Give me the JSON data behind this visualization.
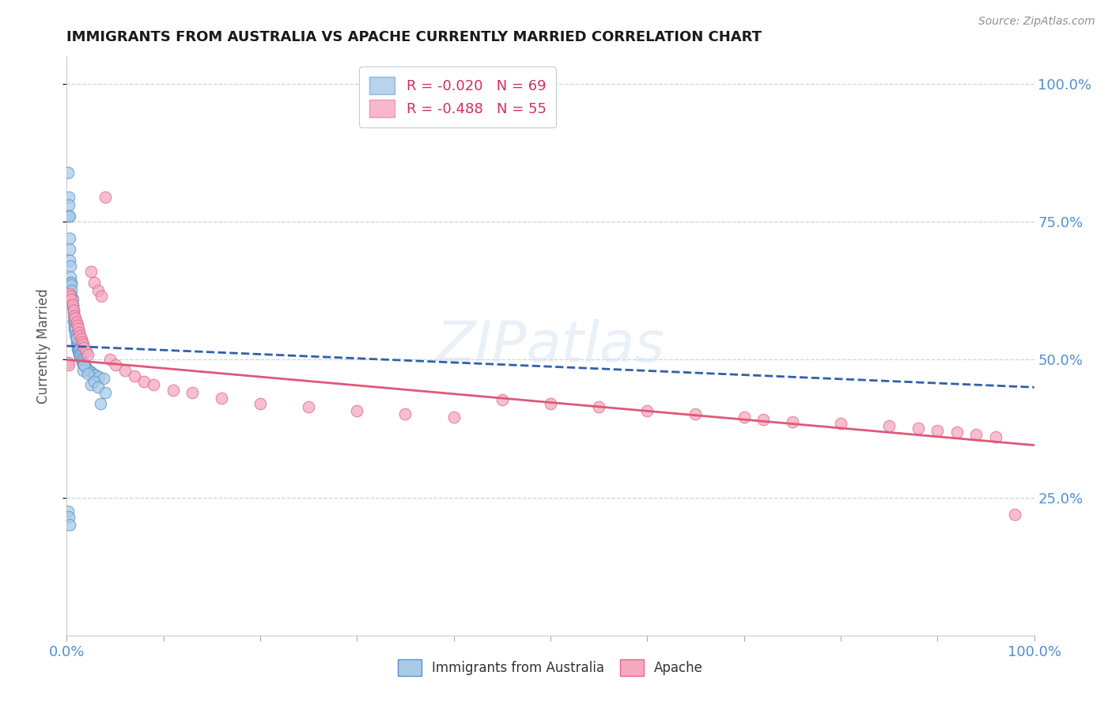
{
  "title": "IMMIGRANTS FROM AUSTRALIA VS APACHE CURRENTLY MARRIED CORRELATION CHART",
  "source": "Source: ZipAtlas.com",
  "ylabel": "Currently Married",
  "series1_label": "Immigrants from Australia",
  "series2_label": "Apache",
  "series1_color": "#a8cce8",
  "series2_color": "#f5a8c0",
  "series1_edge": "#6090c8",
  "series2_edge": "#e06888",
  "trend1_color": "#3060a8",
  "trend2_color": "#e05878",
  "axis_label_color": "#5090d0",
  "title_color": "#1a1a1a",
  "grid_color": "#c8d4e8",
  "background_color": "#ffffff",
  "legend_label_color": "#d03060",
  "legend_box_color1": "#b8d4ec",
  "legend_box_color2": "#f8b8cc",
  "legend_text1": "R = -0.020   N = 69",
  "legend_text2": "R = -0.488   N = 55",
  "trend1_intercept": 0.525,
  "trend1_slope": -0.075,
  "trend2_intercept": 0.5,
  "trend2_slope": -0.155,
  "xlim": [
    0.0,
    1.0
  ],
  "ylim": [
    0.0,
    1.05
  ],
  "figsize": [
    14.06,
    8.92
  ],
  "dpi": 100,
  "series1_x": [
    0.001,
    0.001,
    0.002,
    0.002,
    0.002,
    0.003,
    0.003,
    0.003,
    0.003,
    0.004,
    0.004,
    0.004,
    0.005,
    0.005,
    0.005,
    0.005,
    0.006,
    0.006,
    0.006,
    0.007,
    0.007,
    0.007,
    0.007,
    0.008,
    0.008,
    0.008,
    0.008,
    0.009,
    0.009,
    0.01,
    0.01,
    0.01,
    0.01,
    0.011,
    0.011,
    0.011,
    0.012,
    0.012,
    0.013,
    0.013,
    0.014,
    0.014,
    0.015,
    0.015,
    0.016,
    0.016,
    0.017,
    0.018,
    0.019,
    0.02,
    0.022,
    0.024,
    0.026,
    0.028,
    0.03,
    0.033,
    0.038,
    0.001,
    0.002,
    0.003,
    0.01,
    0.017,
    0.025,
    0.035,
    0.018,
    0.022,
    0.028,
    0.032,
    0.04
  ],
  "series1_y": [
    0.84,
    0.76,
    0.795,
    0.78,
    0.76,
    0.76,
    0.72,
    0.7,
    0.68,
    0.67,
    0.65,
    0.64,
    0.64,
    0.635,
    0.625,
    0.615,
    0.61,
    0.6,
    0.595,
    0.59,
    0.585,
    0.58,
    0.57,
    0.57,
    0.565,
    0.56,
    0.555,
    0.555,
    0.545,
    0.545,
    0.54,
    0.535,
    0.53,
    0.528,
    0.525,
    0.52,
    0.518,
    0.515,
    0.512,
    0.51,
    0.508,
    0.505,
    0.502,
    0.5,
    0.498,
    0.495,
    0.492,
    0.49,
    0.488,
    0.485,
    0.482,
    0.479,
    0.476,
    0.474,
    0.472,
    0.469,
    0.466,
    0.225,
    0.215,
    0.2,
    0.54,
    0.48,
    0.455,
    0.42,
    0.49,
    0.475,
    0.46,
    0.45,
    0.44
  ],
  "series2_x": [
    0.001,
    0.002,
    0.003,
    0.004,
    0.005,
    0.006,
    0.007,
    0.008,
    0.009,
    0.01,
    0.011,
    0.012,
    0.013,
    0.014,
    0.015,
    0.016,
    0.017,
    0.018,
    0.02,
    0.022,
    0.025,
    0.028,
    0.032,
    0.036,
    0.04,
    0.045,
    0.05,
    0.06,
    0.07,
    0.08,
    0.09,
    0.11,
    0.13,
    0.16,
    0.2,
    0.25,
    0.3,
    0.35,
    0.4,
    0.45,
    0.5,
    0.55,
    0.6,
    0.65,
    0.7,
    0.72,
    0.75,
    0.8,
    0.85,
    0.88,
    0.9,
    0.92,
    0.94,
    0.96,
    0.98
  ],
  "series2_y": [
    0.495,
    0.49,
    0.62,
    0.615,
    0.61,
    0.6,
    0.59,
    0.58,
    0.575,
    0.568,
    0.562,
    0.556,
    0.55,
    0.544,
    0.538,
    0.532,
    0.528,
    0.522,
    0.515,
    0.51,
    0.66,
    0.64,
    0.625,
    0.615,
    0.795,
    0.5,
    0.49,
    0.48,
    0.47,
    0.46,
    0.455,
    0.445,
    0.44,
    0.43,
    0.42,
    0.415,
    0.408,
    0.402,
    0.396,
    0.428,
    0.42,
    0.415,
    0.408,
    0.402,
    0.396,
    0.392,
    0.388,
    0.384,
    0.38,
    0.376,
    0.372,
    0.368,
    0.364,
    0.36,
    0.22
  ]
}
